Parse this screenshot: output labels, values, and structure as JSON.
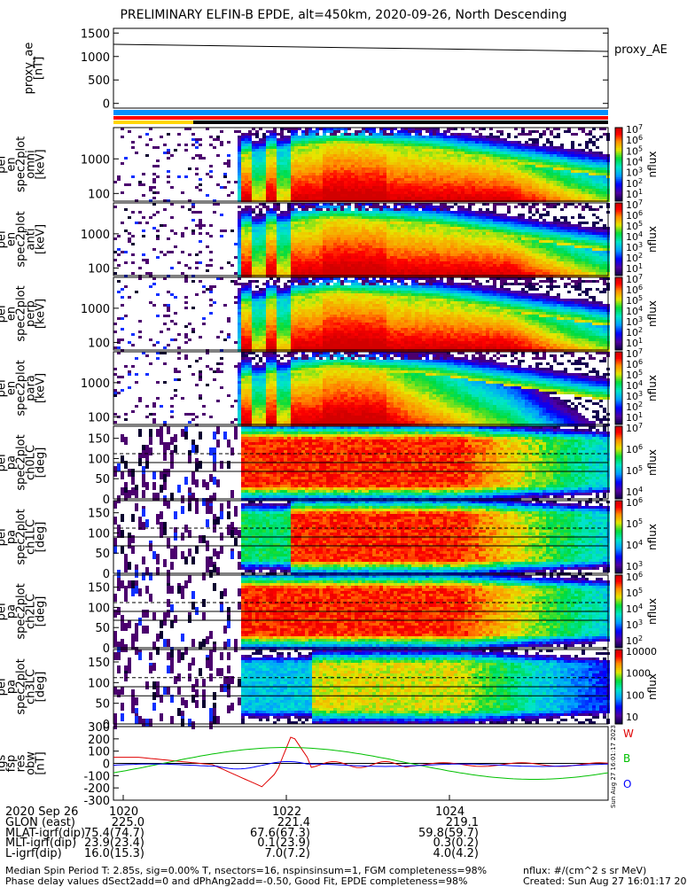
{
  "title": "PRELIMINARY ELFIN-B EPDE, alt=450km, 2020-09-26, North Descending",
  "colors": {
    "bar_blue": "#0090ff",
    "bar_red": "#ff0000",
    "bar_yellow": "#ffd700",
    "bar_black": "#000000",
    "fgs_red": "#e00000",
    "fgs_green": "#00c000",
    "fgs_blue": "#0000ff"
  },
  "chart_data": [
    {
      "type": "line",
      "name": "proxy_ae",
      "ylabel": "proxy_ae [nT]",
      "ylim": [
        -100,
        1600
      ],
      "yticks": [
        0,
        500,
        1000,
        1500
      ],
      "series": [
        {
          "name": "proxy_AE",
          "x": [
            "1019",
            "1026"
          ],
          "values": [
            1260,
            1110
          ]
        }
      ]
    },
    {
      "type": "heatmap",
      "name": "elb_pef_en_spec2plot_omni",
      "ylabel": [
        "elb",
        "pef",
        "en",
        "spec2plot",
        "omni",
        "[keV]"
      ],
      "yscale": "log",
      "yticks": [
        100,
        1000
      ],
      "colorbar_ticks": [
        "10^7",
        "10^6",
        "10^5",
        "10^4",
        "10^3",
        "10^2",
        "10^1"
      ],
      "colorbar_label": "nflux"
    },
    {
      "type": "heatmap",
      "name": "elb_pef_en_spec2plot_anti",
      "ylabel": [
        "elb",
        "pef",
        "en",
        "spec2plot",
        "anti",
        "[keV]"
      ],
      "yscale": "log",
      "yticks": [
        100,
        1000
      ],
      "colorbar_ticks": [
        "10^7",
        "10^6",
        "10^5",
        "10^4",
        "10^3",
        "10^2",
        "10^1"
      ],
      "colorbar_label": "nflux"
    },
    {
      "type": "heatmap",
      "name": "elb_pef_en_spec2plot_perp",
      "ylabel": [
        "elb",
        "pef",
        "en",
        "spec2plot",
        "perp",
        "[keV]"
      ],
      "yscale": "log",
      "yticks": [
        100,
        1000
      ],
      "colorbar_ticks": [
        "10^7",
        "10^6",
        "10^5",
        "10^4",
        "10^3",
        "10^2",
        "10^1"
      ],
      "colorbar_label": "nflux"
    },
    {
      "type": "heatmap",
      "name": "elb_pef_en_spec2plot_para",
      "ylabel": [
        "elb",
        "pef",
        "en",
        "spec2plot",
        "para",
        "[keV]"
      ],
      "yscale": "log",
      "yticks": [
        100,
        1000
      ],
      "colorbar_ticks": [
        "10^7",
        "10^6",
        "10^5",
        "10^4",
        "10^3",
        "10^2",
        "10^1"
      ],
      "colorbar_label": "nflux"
    },
    {
      "type": "heatmap",
      "name": "elb_pef_pa_spec2plot_ch0LC",
      "ylabel": [
        "elb",
        "pef",
        "pa",
        "spec2plot",
        "ch0LC",
        "[deg]"
      ],
      "ylim": [
        0,
        180
      ],
      "yticks": [
        0,
        50,
        100,
        150
      ],
      "colorbar_ticks": [
        "10^7",
        "10^6",
        "10^5",
        "10^4"
      ],
      "colorbar_label": "nflux"
    },
    {
      "type": "heatmap",
      "name": "elb_pef_pa_spec2plot_ch1LC",
      "ylabel": [
        "elb",
        "pef",
        "pa",
        "spec2plot",
        "ch1LC",
        "[deg]"
      ],
      "ylim": [
        0,
        180
      ],
      "yticks": [
        0,
        50,
        100,
        150
      ],
      "colorbar_ticks": [
        "10^6",
        "10^5",
        "10^4",
        "10^3"
      ],
      "colorbar_label": "nflux"
    },
    {
      "type": "heatmap",
      "name": "elb_pef_pa_spec2plot_ch2LC",
      "ylabel": [
        "elb",
        "pef",
        "pa",
        "spec2plot",
        "ch2LC",
        "[deg]"
      ],
      "ylim": [
        0,
        180
      ],
      "yticks": [
        0,
        50,
        100,
        150
      ],
      "colorbar_ticks": [
        "10^6",
        "10^5",
        "10^4",
        "10^3",
        "10^2"
      ],
      "colorbar_label": "nflux"
    },
    {
      "type": "heatmap",
      "name": "elb_pef_pa_spec2plot_ch3LC",
      "ylabel": [
        "elb",
        "pef",
        "pa",
        "spec2plot",
        "ch3LC",
        "[deg]"
      ],
      "ylim": [
        0,
        180
      ],
      "yticks": [
        0,
        50,
        100,
        150
      ],
      "colorbar_ticks": [
        "10000",
        "1000",
        "100",
        "10"
      ],
      "colorbar_label": "nflux"
    },
    {
      "type": "line",
      "name": "elb_fgs_fsp_res_obw",
      "ylabel": [
        "elb",
        "fgs",
        "fsp",
        "res",
        "obw",
        "[nT]"
      ],
      "ylim": [
        -300,
        300
      ],
      "yticks": [
        -300,
        -200,
        -100,
        0,
        100,
        200,
        300
      ],
      "series": [
        {
          "name": "W"
        },
        {
          "name": "B"
        },
        {
          "name": "O"
        }
      ],
      "side_stamp": "Sun Aug 27 16:01:17 2023"
    }
  ],
  "xaxis": {
    "ticks": [
      "1020",
      "1022",
      "1024"
    ],
    "date": "2020 Sep 26",
    "rows": [
      {
        "label": "GLON (east)",
        "values": [
          "225.0",
          "221.4",
          "219.1"
        ]
      },
      {
        "label": "MLAT-igrf(dip)",
        "values": [
          "75.4(74.7)",
          "67.6(67.3)",
          "59.8(59.7)"
        ]
      },
      {
        "label": "MLT-igrf(dip)",
        "values": [
          "23.9(23.4)",
          "0.1(23.9)",
          "0.3(0.2)"
        ]
      },
      {
        "label": "L-igrf(dip)",
        "values": [
          "16.0(15.3)",
          "7.0(7.2)",
          "4.0(4.2)"
        ]
      }
    ]
  },
  "footer": {
    "line1": "Median Spin Period T: 2.85s, sig=0.00% T, nsectors=16, nspinsinsum=1, FGM completeness=98%",
    "line2": "Phase delay values dSect2add=0 and dPhAng2add=-0.50, Good Fit, EPDE completeness=98%",
    "units": "nflux: #/(cm^2 s sr MeV)",
    "created": "Created: Sun Aug 27 16:01:17 2023"
  }
}
